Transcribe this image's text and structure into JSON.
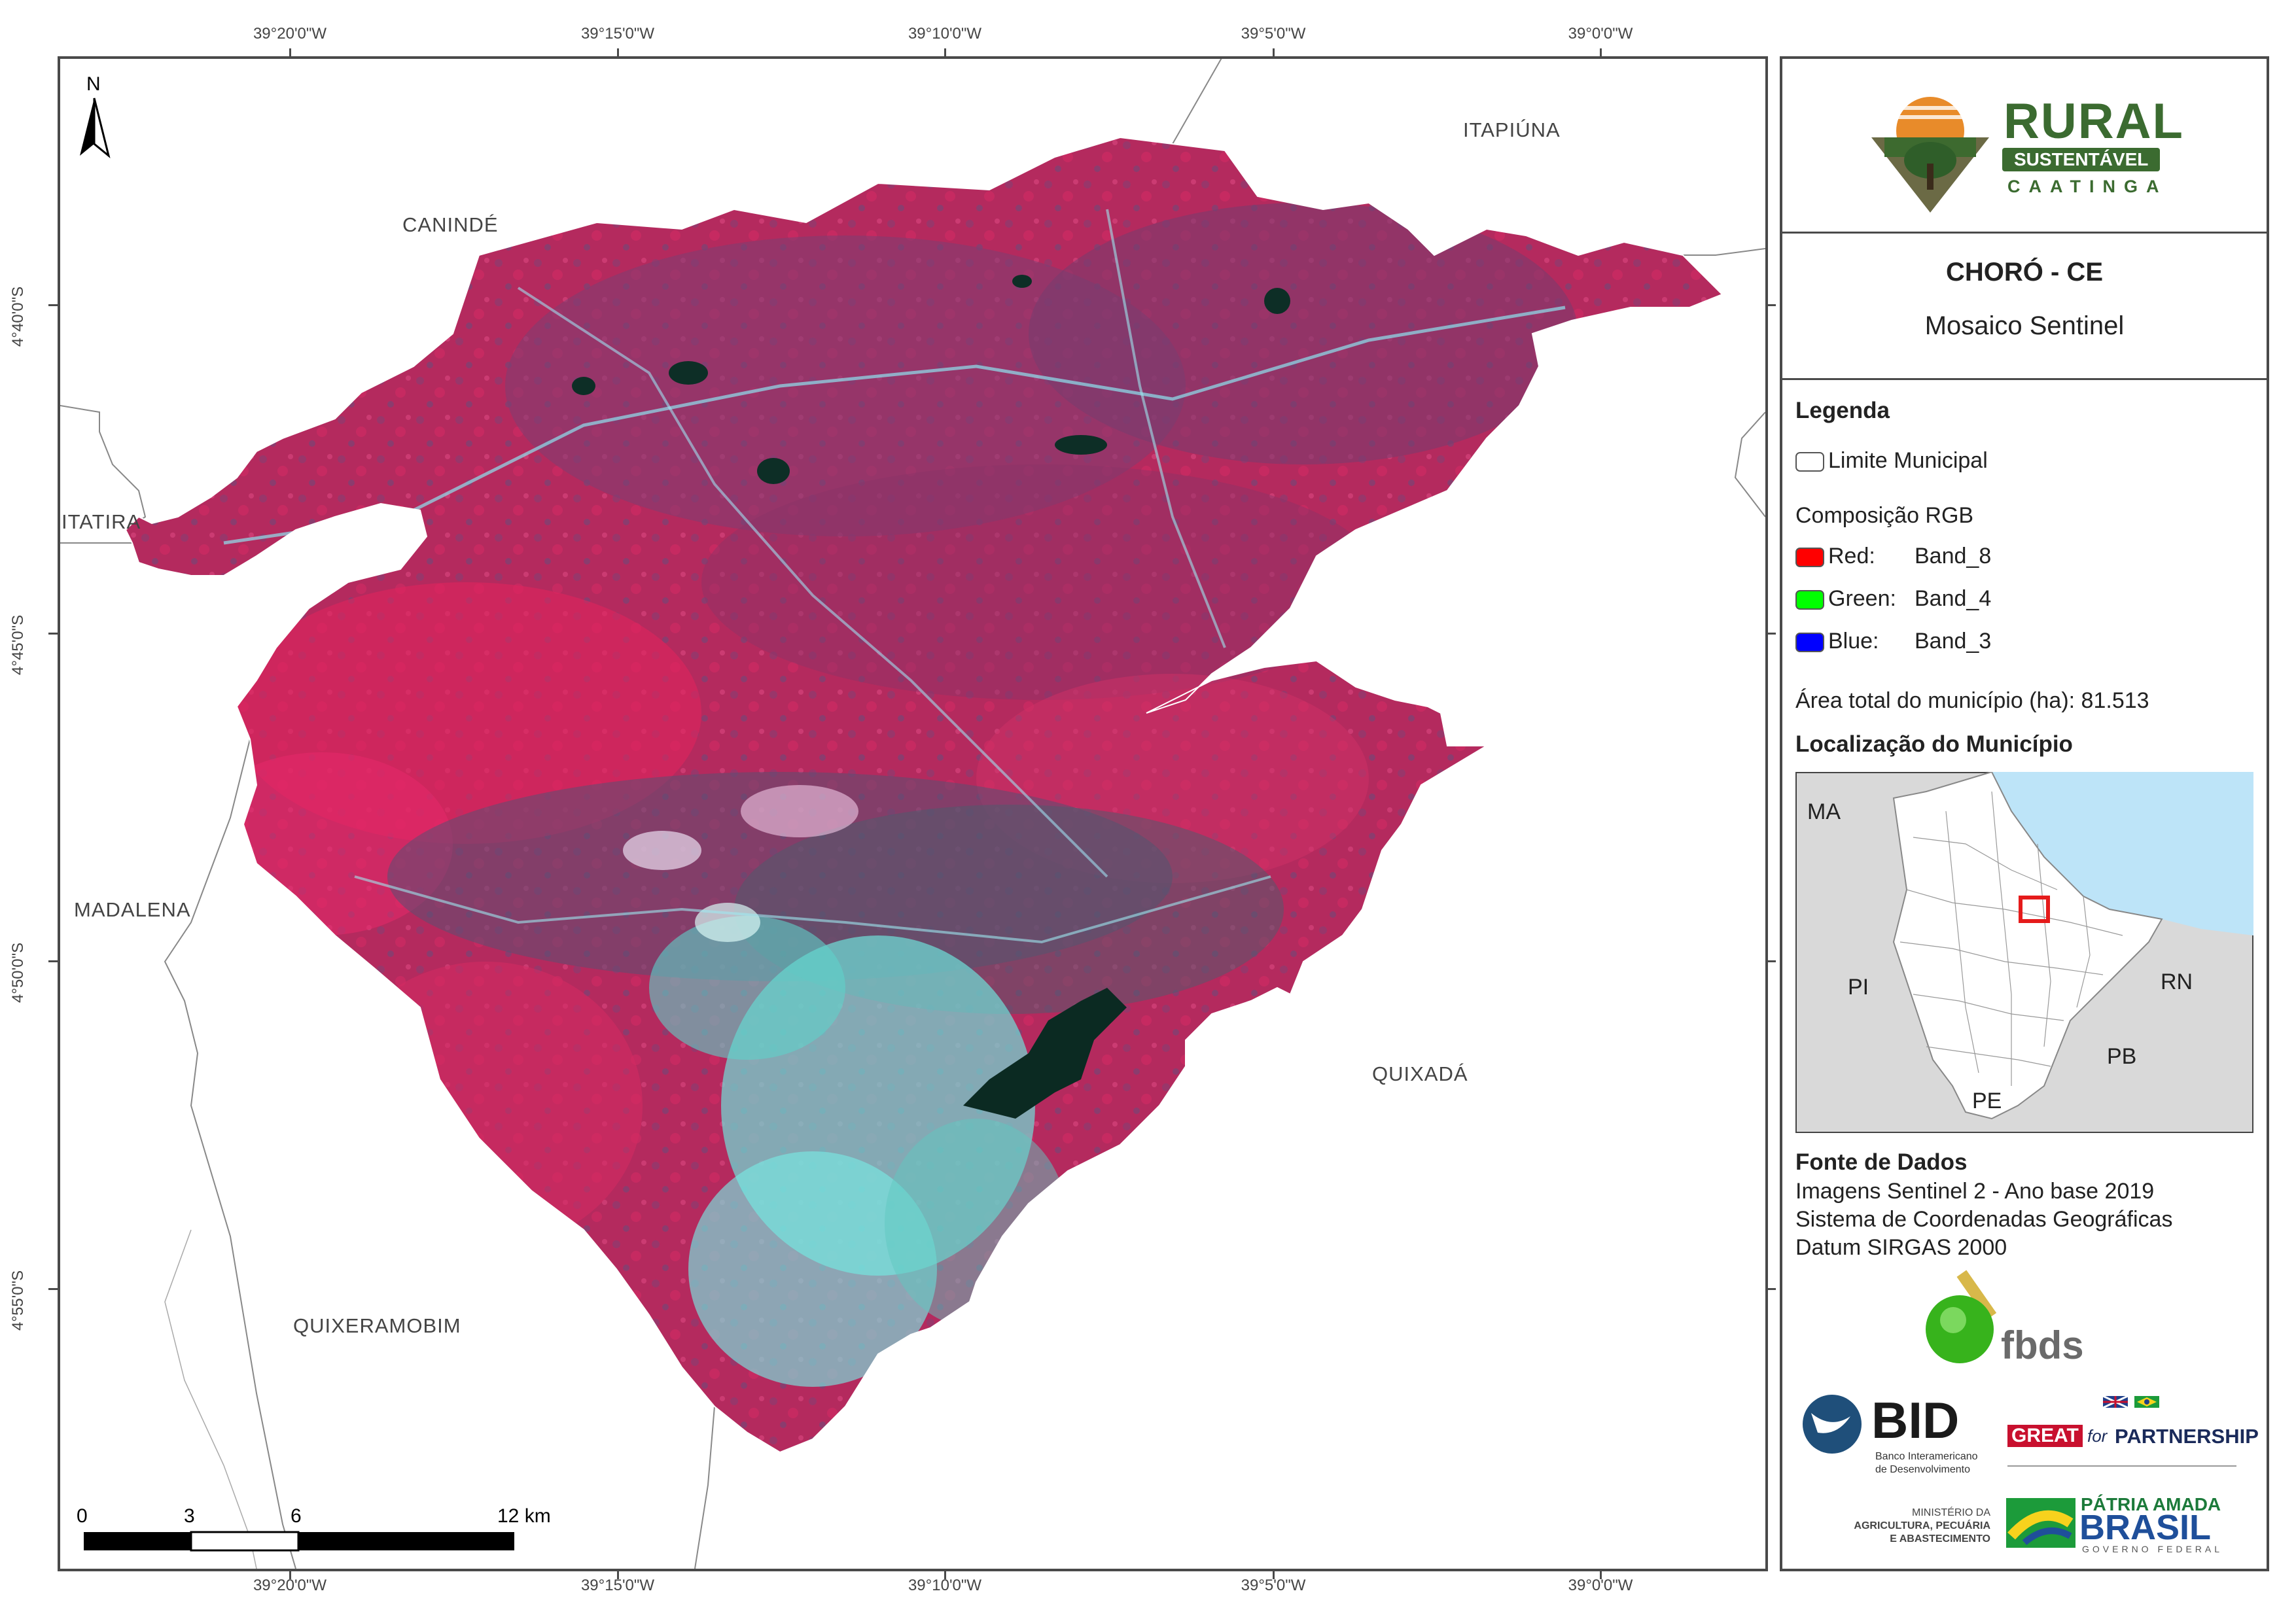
{
  "map": {
    "north_label": "N",
    "graticule_top": [
      "39°20'0\"W",
      "39°15'0\"W",
      "39°10'0\"W",
      "39°5'0\"W",
      "39°0'0\"W"
    ],
    "graticule_bottom": [
      "39°20'0\"W",
      "39°15'0\"W",
      "39°10'0\"W",
      "39°5'0\"W",
      "39°0'0\"W"
    ],
    "graticule_left": [
      "4°40'0\"S",
      "4°45'0\"S",
      "4°50'0\"S",
      "4°55'0\"S"
    ],
    "places": {
      "caninde": "CANINDÉ",
      "itapiuna": "ITAPIÚNA",
      "itatira": "ITATIRA",
      "madalena": "MADALENA",
      "quixada": "QUIXADÁ",
      "quixeramobim": "QUIXERAMOBIM"
    },
    "scale_labels": [
      "0",
      "3",
      "6",
      "12 km"
    ],
    "colors": {
      "vegetation": "#c0285e",
      "degraded": "#6e4a78",
      "exposed_soil": "#7fe8e0",
      "water": "#0b2a22"
    }
  },
  "panel": {
    "logo": {
      "line1": "RURAL",
      "line2": "SUSTENTÁVEL",
      "line3": "CAATINGA"
    },
    "title": "CHORÓ - CE",
    "subtitle": "Mosaico Sentinel",
    "legend": {
      "heading": "Legenda",
      "limit_label": "Limite Municipal",
      "rgb_heading": "Composição RGB",
      "bands": [
        {
          "channel": "Red:",
          "band": "Band_8",
          "color": "#ff0000"
        },
        {
          "channel": "Green:",
          "band": "Band_4",
          "color": "#00ff00"
        },
        {
          "channel": "Blue:",
          "band": "Band_3",
          "color": "#0000ff"
        }
      ],
      "area_text": "Área total do município (ha): 81.513"
    },
    "location": {
      "heading": "Localização do Município",
      "labels": {
        "ma": "MA",
        "pi": "PI",
        "rn": "RN",
        "pb": "PB",
        "pe": "PE"
      }
    },
    "sources": {
      "heading": "Fonte de Dados",
      "lines": [
        "Imagens Sentinel 2 - Ano base 2019",
        "Sistema de Coordenadas Geográficas",
        "Datum SIRGAS 2000"
      ]
    },
    "logos": {
      "fbds": "fbds",
      "bid": "BID",
      "bid_sub1": "Banco Interamericano",
      "bid_sub2": "de Desenvolvimento",
      "great_a": "GREAT",
      "great_b": "for",
      "great_c": "PARTNERSHIP",
      "ministerio1": "MINISTÉRIO DA",
      "ministerio2": "AGRICULTURA, PECUÁRIA",
      "ministerio3": "E ABASTECIMENTO",
      "patria": "PÁTRIA AMADA",
      "brasil": "BRASIL",
      "governo": "GOVERNO FEDERAL"
    }
  }
}
